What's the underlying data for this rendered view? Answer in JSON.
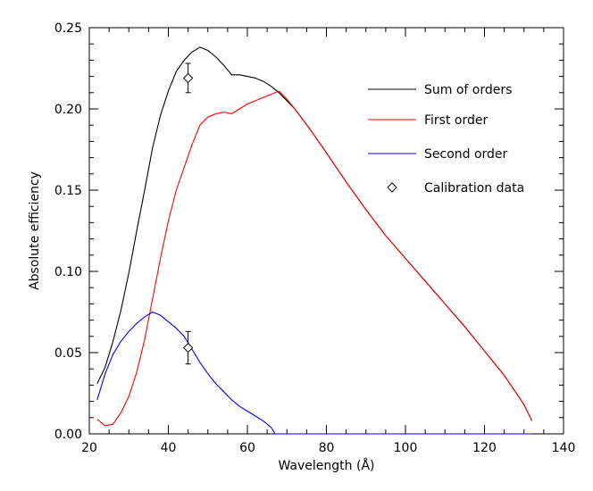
{
  "chart_data": {
    "type": "line",
    "xlabel": "Wavelength (Å)",
    "ylabel": "Absolute efficiency",
    "xlim": [
      20,
      140
    ],
    "ylim": [
      0,
      0.25
    ],
    "x_ticks": [
      20,
      40,
      60,
      80,
      100,
      120,
      140
    ],
    "x_tick_labels": [
      "20",
      "40",
      "60",
      "80",
      "100",
      "120",
      "140"
    ],
    "x_minor_step": 5,
    "y_ticks": [
      0,
      0.05,
      0.1,
      0.15,
      0.2,
      0.25
    ],
    "y_tick_labels": [
      "0.00",
      "0.05",
      "0.10",
      "0.15",
      "0.20",
      "0.25"
    ],
    "y_minor_step": 0.01,
    "grid": false,
    "legend_position": "top-right",
    "series": [
      {
        "name": "Sum of orders",
        "color": "#000000",
        "points": [
          [
            22,
            0.031
          ],
          [
            24,
            0.041
          ],
          [
            26,
            0.057
          ],
          [
            28,
            0.076
          ],
          [
            30,
            0.099
          ],
          [
            32,
            0.125
          ],
          [
            34,
            0.15
          ],
          [
            36,
            0.176
          ],
          [
            38,
            0.196
          ],
          [
            40,
            0.211
          ],
          [
            42,
            0.223
          ],
          [
            44,
            0.23
          ],
          [
            46,
            0.235
          ],
          [
            48,
            0.238
          ],
          [
            50,
            0.236
          ],
          [
            52,
            0.232
          ],
          [
            54,
            0.227
          ],
          [
            56,
            0.221
          ],
          [
            58,
            0.221
          ],
          [
            60,
            0.22
          ],
          [
            62,
            0.219
          ],
          [
            64,
            0.217
          ],
          [
            66,
            0.214
          ],
          [
            68,
            0.21
          ],
          [
            70,
            0.205
          ],
          [
            72,
            0.2
          ],
          [
            76,
            0.187
          ],
          [
            80,
            0.173
          ],
          [
            85,
            0.155
          ],
          [
            90,
            0.138
          ],
          [
            95,
            0.122
          ],
          [
            100,
            0.108
          ],
          [
            105,
            0.094
          ],
          [
            110,
            0.08
          ],
          [
            115,
            0.066
          ],
          [
            120,
            0.051
          ],
          [
            125,
            0.036
          ],
          [
            130,
            0.018
          ],
          [
            132,
            0.008
          ]
        ]
      },
      {
        "name": "First order",
        "color": "#ff0000",
        "points": [
          [
            22,
            0.009
          ],
          [
            24,
            0.005
          ],
          [
            26,
            0.006
          ],
          [
            28,
            0.013
          ],
          [
            30,
            0.023
          ],
          [
            32,
            0.038
          ],
          [
            34,
            0.058
          ],
          [
            36,
            0.083
          ],
          [
            38,
            0.108
          ],
          [
            40,
            0.131
          ],
          [
            42,
            0.15
          ],
          [
            44,
            0.164
          ],
          [
            46,
            0.178
          ],
          [
            48,
            0.19
          ],
          [
            50,
            0.195
          ],
          [
            52,
            0.197
          ],
          [
            54,
            0.198
          ],
          [
            56,
            0.197
          ],
          [
            58,
            0.2
          ],
          [
            60,
            0.203
          ],
          [
            62,
            0.205
          ],
          [
            64,
            0.207
          ],
          [
            66,
            0.209
          ],
          [
            68,
            0.211
          ],
          [
            70,
            0.206
          ],
          [
            72,
            0.2
          ],
          [
            76,
            0.187
          ],
          [
            80,
            0.173
          ],
          [
            85,
            0.155
          ],
          [
            90,
            0.138
          ],
          [
            95,
            0.122
          ],
          [
            100,
            0.108
          ],
          [
            105,
            0.094
          ],
          [
            110,
            0.08
          ],
          [
            115,
            0.066
          ],
          [
            120,
            0.051
          ],
          [
            125,
            0.036
          ],
          [
            130,
            0.018
          ],
          [
            132,
            0.008
          ]
        ]
      },
      {
        "name": "Second order",
        "color": "#0000ff",
        "points": [
          [
            22,
            0.021
          ],
          [
            24,
            0.037
          ],
          [
            26,
            0.049
          ],
          [
            28,
            0.057
          ],
          [
            30,
            0.063
          ],
          [
            32,
            0.068
          ],
          [
            34,
            0.072
          ],
          [
            36,
            0.075
          ],
          [
            38,
            0.073
          ],
          [
            40,
            0.069
          ],
          [
            42,
            0.065
          ],
          [
            44,
            0.06
          ],
          [
            46,
            0.052
          ],
          [
            48,
            0.044
          ],
          [
            50,
            0.037
          ],
          [
            52,
            0.031
          ],
          [
            54,
            0.026
          ],
          [
            56,
            0.021
          ],
          [
            58,
            0.017
          ],
          [
            60,
            0.014
          ],
          [
            62,
            0.011
          ],
          [
            64,
            0.008
          ],
          [
            66,
            0.004
          ],
          [
            67,
            0.0
          ],
          [
            132,
            0.0
          ]
        ]
      }
    ],
    "calibration": {
      "name": "Calibration data",
      "marker": "diamond",
      "points": [
        {
          "x": 45,
          "y": 0.219,
          "err": 0.009
        },
        {
          "x": 45,
          "y": 0.053,
          "err": 0.01
        }
      ]
    }
  }
}
